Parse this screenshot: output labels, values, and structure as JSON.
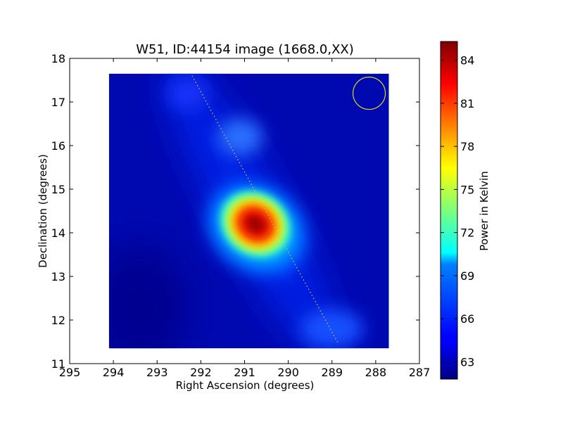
{
  "chart_data": {
    "type": "heatmap",
    "title": "W51, ID:44154 image (1668.0,XX)",
    "xlabel": "Right Ascension (degrees)",
    "ylabel": "Declination (degrees)",
    "xlim": [
      295,
      287
    ],
    "ylim": [
      11,
      18
    ],
    "x_ticks": [
      "295",
      "294",
      "293",
      "292",
      "291",
      "290",
      "289",
      "288",
      "287"
    ],
    "y_ticks": [
      "11",
      "12",
      "13",
      "14",
      "15",
      "16",
      "17",
      "18"
    ],
    "image_extent": {
      "ra": [
        294.1,
        287.7
      ],
      "dec": [
        11.35,
        17.65
      ]
    },
    "peak": {
      "ra": 290.75,
      "dec": 14.2,
      "value": 85
    },
    "secondary_source": {
      "ra": 291.1,
      "dec": 16.2,
      "value": 67
    },
    "beam_circle": {
      "ra": 288.15,
      "dec": 17.2,
      "radius_deg": 0.37,
      "color": "#d8d820"
    },
    "galactic_plane_line": {
      "from": {
        "ra": 292.2,
        "dec": 17.6
      },
      "to": {
        "ra": 288.85,
        "dec": 11.45
      }
    },
    "colorbar": {
      "label": "Power in Kelvin",
      "min": 61.8,
      "max": 85.3,
      "ticks": [
        "63",
        "66",
        "69",
        "72",
        "75",
        "78",
        "81",
        "84"
      ],
      "colormap": "jet"
    },
    "grid": false
  }
}
